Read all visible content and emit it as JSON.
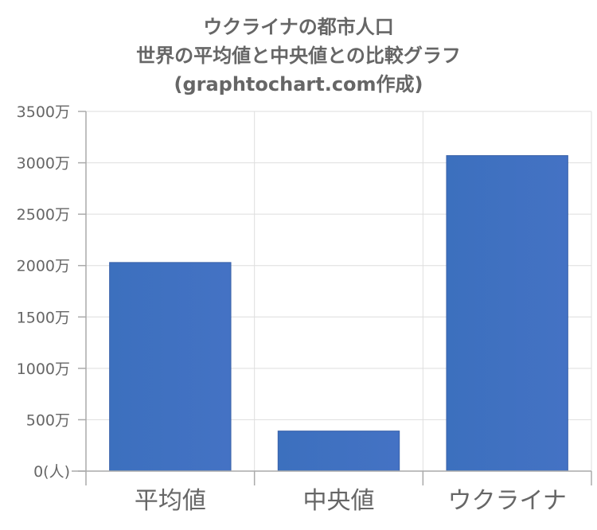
{
  "chart_data": {
    "type": "bar",
    "title": [
      "ウクライナの都市人口",
      "世界の平均値と中央値との比較グラフ",
      "(graphtochart.com作成)"
    ],
    "categories": [
      "平均値",
      "中央値",
      "ウクライナ"
    ],
    "values": [
      20300000,
      3900000,
      30700000
    ],
    "ylim": [
      0,
      35000000
    ],
    "yticks": [
      0,
      5000000,
      10000000,
      15000000,
      20000000,
      25000000,
      30000000,
      35000000
    ],
    "ytick_labels": [
      "0(人)",
      "500万",
      "1000万",
      "1500万",
      "2000万",
      "2500万",
      "3000万",
      "3500万"
    ],
    "grid": true,
    "legend": "none",
    "colors": {
      "bar": "#4472c4",
      "bar_left": "#3c70be",
      "bar_border": "#3a62a8",
      "text": "#666666",
      "grid": "#dedede"
    }
  }
}
